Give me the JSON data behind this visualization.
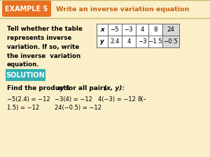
{
  "bg_color": "#faefc8",
  "header_bg": "#e87020",
  "header_text": "EXAMPLE 5",
  "header_title": "Write an inverse variation equation",
  "header_title_color": "#c86010",
  "header_text_color": "#ffffff",
  "solution_bg": "#30b0b0",
  "solution_text": "SOLUTION",
  "body_text": "Tell whether the table\nrepresents inverse\nvariation. If so, write\nthe inverse  variation\nequation.",
  "find_line": "Find the products xy for all pairs (x, y):",
  "table_x_vals": [
    "x",
    "−5",
    "−3",
    "4",
    "8",
    "24"
  ],
  "table_y_vals": [
    "y",
    "2.4",
    "4",
    "−3",
    "−1.5",
    "−0.5"
  ],
  "eq_line1a": "−5(2.4) = −12",
  "eq_line1b": "−3(4) = −12",
  "eq_line1c": "4(−3) = −12",
  "eq_line1d": "8(–",
  "eq_line2a": "1.5) = −12",
  "eq_line2b": "24(−0.5) = −12"
}
